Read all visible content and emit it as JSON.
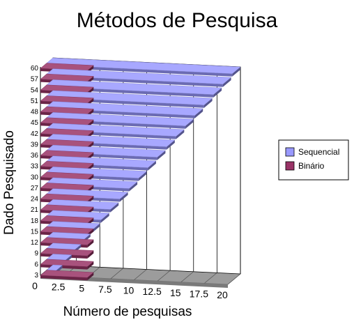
{
  "chart_data": {
    "type": "bar",
    "orientation": "horizontal-3d",
    "title": "Métodos de Pesquisa",
    "xlabel": "Número de pesquisas",
    "ylabel": "Dado Pesquisado",
    "categories": [
      "3",
      "6",
      "9",
      "12",
      "15",
      "18",
      "21",
      "24",
      "27",
      "30",
      "33",
      "36",
      "39",
      "42",
      "45",
      "48",
      "51",
      "54",
      "57",
      "60"
    ],
    "x_ticks": [
      "0",
      "2.5",
      "5",
      "7.5",
      "10",
      "12.5",
      "15",
      "17.5",
      "20"
    ],
    "xlim": [
      0,
      20
    ],
    "grid": true,
    "legend_position": "right",
    "series": [
      {
        "name": "Sequencial",
        "color": "#9999ff",
        "values": [
          1,
          2,
          3,
          4,
          5,
          6,
          7,
          8,
          9,
          10,
          11,
          12,
          13,
          14,
          15,
          16,
          17,
          18,
          19,
          20
        ]
      },
      {
        "name": "Binário",
        "color": "#993366",
        "values": [
          5,
          5,
          5,
          5,
          5,
          5,
          5,
          5,
          5,
          5,
          5,
          5,
          5,
          5,
          5,
          5,
          5,
          5,
          5,
          5
        ]
      }
    ]
  }
}
